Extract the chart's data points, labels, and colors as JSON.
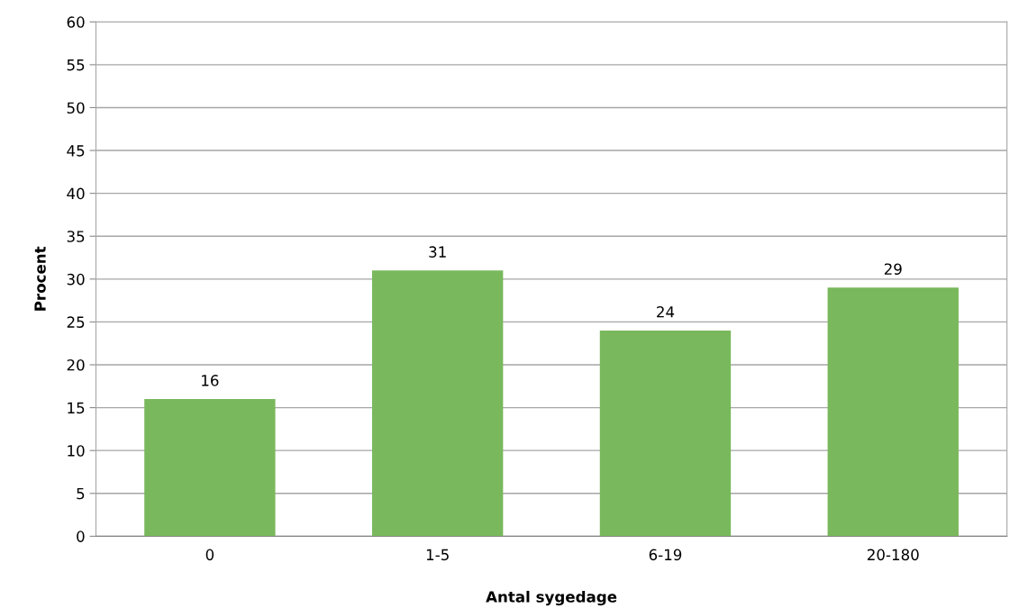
{
  "chart_data": {
    "type": "bar",
    "xlabel": "Antal sygedage",
    "ylabel": "Procent",
    "categories": [
      "0",
      "1-5",
      "6-19",
      "20-180"
    ],
    "values": [
      16,
      31,
      24,
      29
    ],
    "color": "#79b85c",
    "ylim": [
      0,
      60
    ],
    "yticks": [
      0,
      5,
      10,
      15,
      20,
      25,
      30,
      35,
      40,
      45,
      50,
      55,
      60
    ],
    "grid": "y",
    "data_labels": true
  }
}
